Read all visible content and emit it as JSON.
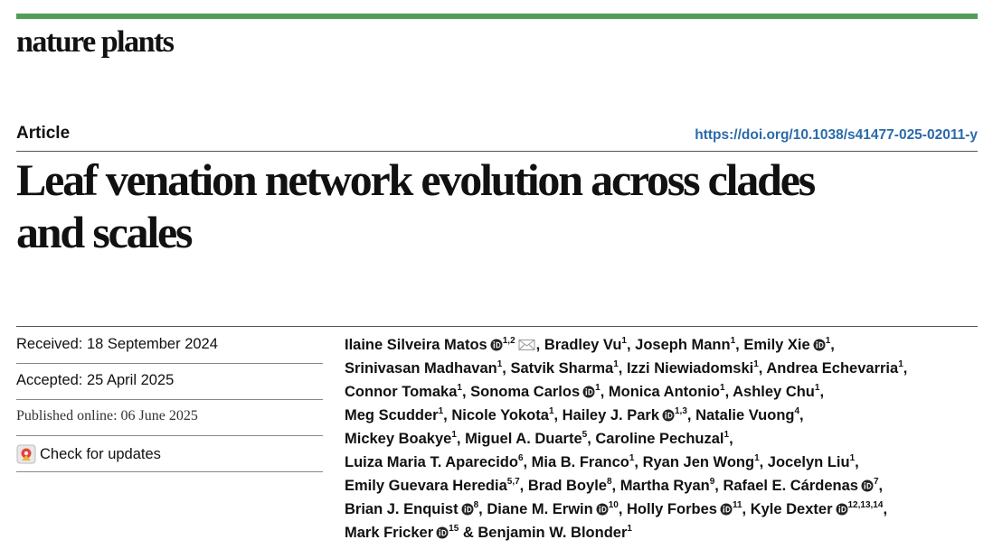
{
  "journal": "nature plants",
  "article_type": "Article",
  "doi": "https://doi.org/10.1038/s41477-025-02011-y",
  "title": "Leaf venation network evolution across clades and scales",
  "dates": {
    "received": "Received: 18 September 2024",
    "accepted": "Accepted: 25 April 2025",
    "published": "Published online: 06 June 2025"
  },
  "check_updates": "Check for updates",
  "author_lines": [
    [
      {
        "name": "Ilaine Silveira Matos",
        "orcid": true,
        "sup": "1,2",
        "corresponding": true,
        "sep": ", "
      },
      {
        "name": "Bradley Vu",
        "sup": "1",
        "sep": ", "
      },
      {
        "name": "Joseph Mann",
        "sup": "1",
        "sep": ", "
      },
      {
        "name": "Emily Xie",
        "orcid": true,
        "sup": "1",
        "sep": ","
      }
    ],
    [
      {
        "name": "Srinivasan Madhavan",
        "sup": "1",
        "sep": ", "
      },
      {
        "name": "Satvik Sharma",
        "sup": "1",
        "sep": ", "
      },
      {
        "name": "Izzi Niewiadomski",
        "sup": "1",
        "sep": ", "
      },
      {
        "name": "Andrea Echevarria",
        "sup": "1",
        "sep": ","
      }
    ],
    [
      {
        "name": "Connor Tomaka",
        "sup": "1",
        "sep": ", "
      },
      {
        "name": "Sonoma Carlos",
        "orcid": true,
        "sup": "1",
        "sep": ", "
      },
      {
        "name": "Monica Antonio",
        "sup": "1",
        "sep": ", "
      },
      {
        "name": "Ashley Chu",
        "sup": "1",
        "sep": ","
      }
    ],
    [
      {
        "name": "Meg Scudder",
        "sup": "1",
        "sep": ", "
      },
      {
        "name": "Nicole Yokota",
        "sup": "1",
        "sep": ", "
      },
      {
        "name": "Hailey J. Park",
        "orcid": true,
        "sup": "1,3",
        "sep": ", "
      },
      {
        "name": "Natalie Vuong",
        "sup": "4",
        "sep": ","
      }
    ],
    [
      {
        "name": "Mickey Boakye",
        "sup": "1",
        "sep": ", "
      },
      {
        "name": "Miguel A. Duarte",
        "sup": "5",
        "sep": ", "
      },
      {
        "name": "Caroline Pechuzal",
        "sup": "1",
        "sep": ","
      }
    ],
    [
      {
        "name": "Luiza Maria T. Aparecido",
        "sup": "6",
        "sep": ", "
      },
      {
        "name": "Mia B. Franco",
        "sup": "1",
        "sep": ", "
      },
      {
        "name": "Ryan Jen Wong",
        "sup": "1",
        "sep": ", "
      },
      {
        "name": "Jocelyn Liu",
        "sup": "1",
        "sep": ","
      }
    ],
    [
      {
        "name": "Emily Guevara Heredia",
        "sup": "5,7",
        "sep": ", "
      },
      {
        "name": "Brad Boyle",
        "sup": "8",
        "sep": ", "
      },
      {
        "name": "Martha Ryan",
        "sup": "9",
        "sep": ", "
      },
      {
        "name": "Rafael E. Cárdenas",
        "orcid": true,
        "sup": "7",
        "sep": ","
      }
    ],
    [
      {
        "name": "Brian J. Enquist",
        "orcid": true,
        "sup": "8",
        "sep": ", "
      },
      {
        "name": "Diane M. Erwin",
        "orcid": true,
        "sup": "10",
        "sep": ", "
      },
      {
        "name": "Holly Forbes",
        "orcid": true,
        "sup": "11",
        "sep": ", "
      },
      {
        "name": "Kyle Dexter",
        "orcid": true,
        "sup": "12,13,14",
        "sep": ","
      }
    ],
    [
      {
        "name": "Mark Fricker",
        "orcid": true,
        "sup": "15",
        "sep": " & "
      },
      {
        "name": "Benjamin W. Blonder",
        "sup": "1"
      }
    ]
  ]
}
